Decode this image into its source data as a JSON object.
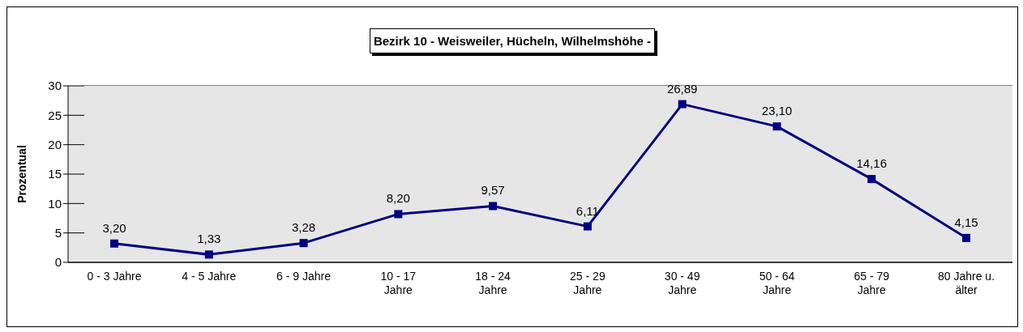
{
  "chart_data": {
    "type": "line",
    "title": "Bezirk 10 - Weisweiler, Hücheln, Wilhelmshöhe -",
    "ylabel": "Prozentual",
    "categories": [
      "0 - 3 Jahre",
      "4 - 5 Jahre",
      "6 - 9 Jahre",
      "10 - 17 Jahre",
      "18 - 24 Jahre",
      "25 - 29 Jahre",
      "30 - 49 Jahre",
      "50 - 64 Jahre",
      "65 - 79 Jahre",
      "80 Jahre u. älter"
    ],
    "series": [
      {
        "color": "#000080",
        "values": [
          3.2,
          1.33,
          3.28,
          8.2,
          9.57,
          6.11,
          26.89,
          23.1,
          14.16,
          4.15
        ],
        "value_labels": [
          "3,20",
          "1,33",
          "3,28",
          "8,20",
          "9,57",
          "6,11",
          "26,89",
          "23,10",
          "14,16",
          "4,15"
        ]
      }
    ],
    "ylim": [
      0,
      30
    ],
    "yticks": [
      0,
      5,
      10,
      15,
      20,
      25,
      30
    ],
    "grid": "y",
    "legend": false,
    "marker": "square",
    "line_style": "solid"
  }
}
